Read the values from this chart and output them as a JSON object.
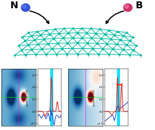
{
  "bg_color": "#ffffff",
  "nanoribbon_color": "#00b8a0",
  "N_sphere_color": "#3355dd",
  "B_sphere_color": "#cc3366",
  "cyan_bar_color": "#00ddff",
  "arrow_color": "#ff2200",
  "line_blue": "#2244cc",
  "line_red": "#dd2222",
  "N_label": "N",
  "B_label": "B"
}
